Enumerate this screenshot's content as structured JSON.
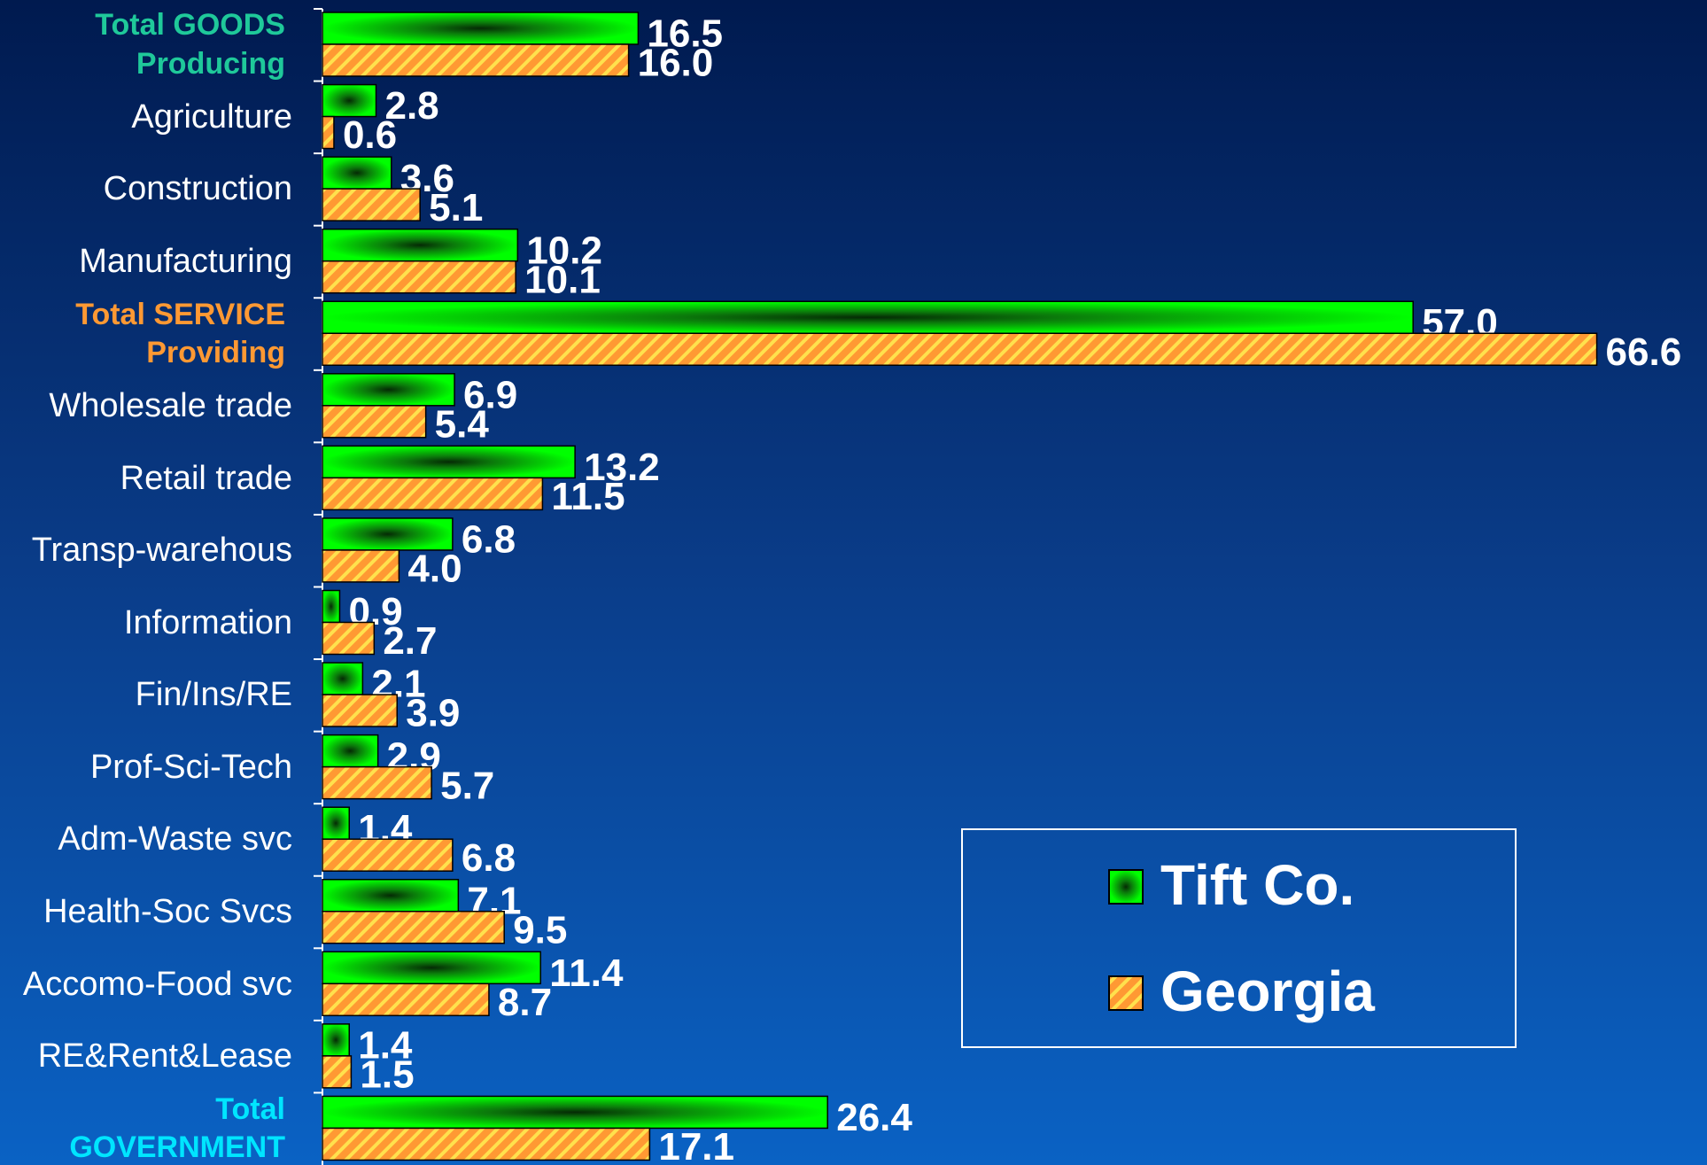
{
  "chart_data": {
    "type": "barh",
    "categories": [
      "Total GOODS Producing",
      "Agriculture",
      "Construction",
      "Manufacturing",
      "Total SERVICE Providing",
      "Wholesale trade",
      "Retail trade",
      "Transp-warehous",
      "Information",
      "Fin/Ins/RE",
      "Prof-Sci-Tech",
      "Adm-Waste svc",
      "Health-Soc Svcs",
      "Accomo-Food svc",
      "RE&Rent&Lease",
      "Total GOVERNMENT"
    ],
    "category_colors": [
      "#1fc99a",
      "#ffffff",
      "#ffffff",
      "#ffffff",
      "#ff9933",
      "#ffffff",
      "#ffffff",
      "#ffffff",
      "#ffffff",
      "#ffffff",
      "#ffffff",
      "#ffffff",
      "#ffffff",
      "#ffffff",
      "#ffffff",
      "#00e5ff"
    ],
    "series": [
      {
        "name": "Tift Co.",
        "color": "#00ff00",
        "values": [
          16.5,
          2.8,
          3.6,
          10.2,
          57.0,
          6.9,
          13.2,
          6.8,
          0.9,
          2.1,
          2.9,
          1.4,
          7.1,
          11.4,
          1.4,
          26.4
        ],
        "value_labels": [
          "16.5",
          "2.8",
          "3.6",
          "10.2",
          "57.0",
          "6.9",
          "13.2",
          "6.8",
          "0.9",
          "2.1",
          "2.9",
          "1.4",
          "7.1",
          "11.4",
          "1.4",
          "26.4"
        ]
      },
      {
        "name": "Georgia",
        "color": "#ff9933",
        "values": [
          16.0,
          0.6,
          5.1,
          10.1,
          66.6,
          5.4,
          11.5,
          4.0,
          2.7,
          3.9,
          5.7,
          6.8,
          9.5,
          8.7,
          1.5,
          17.1
        ],
        "value_labels": [
          "16.0",
          "0.6",
          "5.1",
          "10.1",
          "66.6",
          "5.4",
          "11.5",
          "4.0",
          "2.7",
          "3.9",
          "5.7",
          "6.8",
          "9.5",
          "8.7",
          "1.5",
          "17.1"
        ]
      }
    ],
    "xlim": [
      0,
      72
    ],
    "legend": "lower-right"
  }
}
